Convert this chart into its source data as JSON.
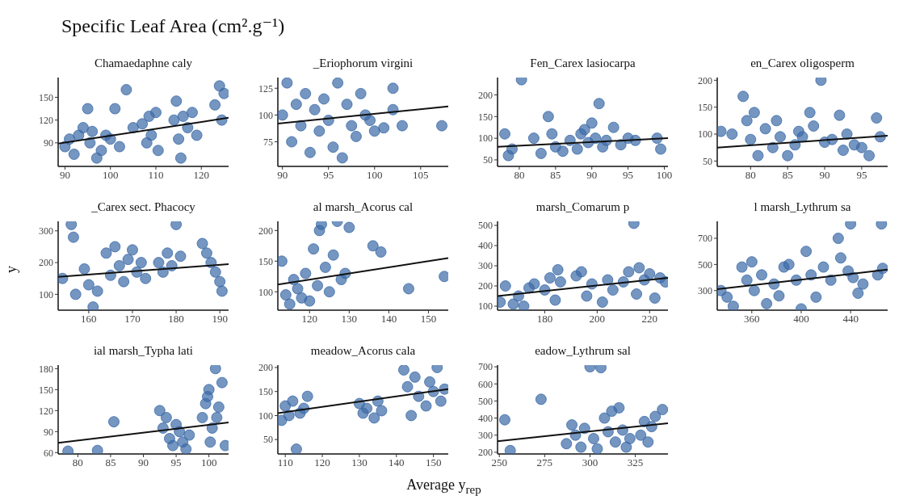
{
  "chart_data": [
    {
      "type": "other",
      "title": "Specific Leaf Area (cm².g⁻¹)"
    },
    {
      "type": "scatter",
      "title": "Chamaedaphne caly",
      "marker": "circle",
      "xlim": [
        88.5,
        126
      ],
      "xticks": [
        90,
        100,
        110,
        120
      ],
      "ylim": [
        59,
        176
      ],
      "yticks": [
        90,
        120,
        150
      ],
      "series": [
        {
          "type": "scatter",
          "color": "#3b6aa6",
          "x": [
            90,
            91,
            92,
            93,
            94,
            95,
            95.5,
            96,
            97,
            98,
            99,
            100,
            101,
            102,
            103.5,
            105,
            107,
            108,
            108.5,
            109,
            110,
            110.5,
            114,
            114.5,
            115,
            115.5,
            116,
            117,
            118,
            119,
            123,
            124,
            124.5,
            125
          ],
          "values": [
            85,
            95,
            75,
            100,
            110,
            135,
            90,
            105,
            70,
            80,
            100,
            95,
            135,
            85,
            160,
            110,
            115,
            90,
            125,
            100,
            130,
            80,
            120,
            145,
            95,
            70,
            125,
            110,
            130,
            100,
            140,
            165,
            120,
            155
          ]
        },
        {
          "type": "line",
          "color": "#111111",
          "marker": "none",
          "x": [
            88.5,
            126
          ],
          "values": [
            89,
            123
          ]
        }
      ]
    },
    {
      "type": "scatter",
      "title": "_Eriophorum virgini",
      "marker": "circle",
      "xlim": [
        89.5,
        108
      ],
      "xticks": [
        90,
        95,
        100,
        105
      ],
      "ylim": [
        52,
        135
      ],
      "yticks": [
        75,
        100,
        125
      ],
      "series": [
        {
          "type": "scatter",
          "color": "#3b6aa6",
          "x": [
            90,
            90.5,
            91,
            91.5,
            92,
            92.5,
            93,
            93.5,
            94,
            94.5,
            95,
            95.5,
            96,
            96.5,
            97,
            97.5,
            98,
            98.5,
            99,
            99.5,
            100,
            101,
            102,
            102,
            103,
            107.3
          ],
          "values": [
            100,
            130,
            75,
            110,
            90,
            120,
            65,
            105,
            85,
            115,
            95,
            70,
            130,
            60,
            110,
            90,
            80,
            120,
            100,
            95,
            85,
            88,
            125,
            105,
            90,
            90
          ]
        },
        {
          "type": "line",
          "color": "#111111",
          "marker": "none",
          "x": [
            89.5,
            108
          ],
          "values": [
            92,
            108
          ]
        }
      ]
    },
    {
      "type": "scatter",
      "title": "Fen_Carex lasiocarpa",
      "marker": "circle",
      "xlim": [
        77,
        100.5
      ],
      "xticks": [
        80,
        85,
        90,
        95,
        100
      ],
      "ylim": [
        35,
        240
      ],
      "yticks": [
        50,
        100,
        150,
        200
      ],
      "series": [
        {
          "type": "scatter",
          "color": "#3b6aa6",
          "x": [
            78,
            78.5,
            79,
            80.3,
            82,
            83,
            84,
            84.5,
            85,
            86,
            87,
            88,
            88.5,
            89,
            89.5,
            90,
            90.5,
            91,
            91.5,
            92,
            93,
            94,
            95,
            96,
            99,
            99.5
          ],
          "values": [
            110,
            60,
            75,
            235,
            100,
            65,
            150,
            110,
            80,
            70,
            95,
            75,
            110,
            120,
            90,
            135,
            100,
            180,
            80,
            95,
            125,
            85,
            100,
            95,
            100,
            75
          ]
        },
        {
          "type": "line",
          "color": "#111111",
          "marker": "none",
          "x": [
            77,
            100.5
          ],
          "values": [
            80,
            100
          ]
        }
      ]
    },
    {
      "type": "scatter",
      "title": "en_Carex oligosperm",
      "marker": "circle",
      "xlim": [
        75.5,
        98.5
      ],
      "xticks": [
        80,
        85,
        90,
        95
      ],
      "ylim": [
        40,
        205
      ],
      "yticks": [
        50,
        100,
        150,
        200
      ],
      "series": [
        {
          "type": "scatter",
          "color": "#3b6aa6",
          "x": [
            76,
            77.5,
            79,
            79.5,
            80,
            80.5,
            81,
            82,
            83,
            83.5,
            84,
            85,
            86,
            86.5,
            87,
            88,
            88.5,
            89.5,
            90,
            91,
            92,
            92.5,
            93,
            94,
            95,
            96,
            97,
            97.5
          ],
          "values": [
            105,
            100,
            170,
            125,
            90,
            140,
            60,
            110,
            75,
            125,
            95,
            60,
            80,
            105,
            95,
            140,
            115,
            200,
            85,
            90,
            135,
            70,
            100,
            80,
            75,
            60,
            130,
            95
          ]
        },
        {
          "type": "line",
          "color": "#111111",
          "marker": "none",
          "x": [
            75.5,
            98.5
          ],
          "values": [
            75,
            97
          ]
        }
      ]
    },
    {
      "type": "scatter",
      "title": "_Carex sect. Phacocy",
      "ylabel": "y",
      "marker": "circle",
      "xlim": [
        153,
        192
      ],
      "xticks": [
        160,
        170,
        180,
        190
      ],
      "ylim": [
        50,
        330
      ],
      "yticks": [
        100,
        200,
        300
      ],
      "series": [
        {
          "type": "scatter",
          "color": "#3b6aa6",
          "x": [
            154,
            156,
            156.5,
            157,
            159,
            160,
            161,
            162,
            164,
            165,
            166,
            167,
            168,
            169,
            170,
            171,
            172,
            173,
            176,
            177,
            178,
            179,
            180,
            181,
            186,
            187,
            188,
            189,
            190,
            190.5
          ],
          "values": [
            150,
            320,
            280,
            100,
            180,
            130,
            60,
            110,
            230,
            160,
            250,
            190,
            140,
            210,
            240,
            170,
            200,
            150,
            200,
            170,
            230,
            190,
            320,
            220,
            260,
            230,
            200,
            170,
            140,
            110
          ]
        },
        {
          "type": "line",
          "color": "#111111",
          "marker": "none",
          "x": [
            153,
            192
          ],
          "values": [
            155,
            195
          ]
        }
      ]
    },
    {
      "type": "scatter",
      "title": "al marsh_Acorus cal",
      "marker": "circle",
      "xlim": [
        112,
        155
      ],
      "xticks": [
        120,
        130,
        140,
        150
      ],
      "ylim": [
        70,
        215
      ],
      "yticks": [
        100,
        150,
        200
      ],
      "series": [
        {
          "type": "scatter",
          "color": "#3b6aa6",
          "x": [
            113,
            114,
            115,
            116,
            117,
            118,
            119,
            120,
            121,
            122,
            122.5,
            123,
            124,
            125,
            126,
            127,
            128,
            129,
            130,
            136,
            138,
            145,
            154
          ],
          "values": [
            150,
            95,
            80,
            120,
            105,
            90,
            130,
            85,
            170,
            110,
            200,
            210,
            140,
            100,
            160,
            215,
            120,
            130,
            205,
            175,
            165,
            105,
            125
          ]
        },
        {
          "type": "line",
          "color": "#111111",
          "marker": "none",
          "x": [
            112,
            155
          ],
          "values": [
            112,
            155
          ]
        }
      ]
    },
    {
      "type": "scatter",
      "title": "marsh_Comarum p",
      "marker": "circle",
      "xlim": [
        162,
        227
      ],
      "xticks": [
        180,
        200,
        220
      ],
      "ylim": [
        80,
        520
      ],
      "yticks": [
        100,
        200,
        300,
        400,
        500
      ],
      "series": [
        {
          "type": "scatter",
          "color": "#3b6aa6",
          "x": [
            163,
            165,
            168,
            170,
            172,
            174,
            176,
            180,
            182,
            184,
            185,
            186,
            192,
            194,
            196,
            198,
            202,
            204,
            206,
            210,
            212,
            214,
            215,
            216,
            218,
            220,
            222,
            224,
            226
          ],
          "values": [
            120,
            200,
            110,
            150,
            100,
            190,
            210,
            180,
            240,
            130,
            280,
            220,
            250,
            270,
            150,
            210,
            120,
            230,
            180,
            220,
            270,
            510,
            160,
            290,
            230,
            260,
            140,
            240,
            220
          ]
        },
        {
          "type": "line",
          "color": "#111111",
          "marker": "none",
          "x": [
            162,
            227
          ],
          "values": [
            150,
            240
          ]
        }
      ]
    },
    {
      "type": "scatter",
      "title": "l marsh_Lythrum sa",
      "marker": "circle",
      "xlim": [
        332,
        470
      ],
      "xticks": [
        360,
        400,
        440
      ],
      "ylim": [
        150,
        830
      ],
      "yticks": [
        300,
        500,
        700
      ],
      "series": [
        {
          "type": "scatter",
          "color": "#3b6aa6",
          "x": [
            335,
            340,
            345,
            352,
            356,
            360,
            362,
            368,
            372,
            378,
            382,
            386,
            390,
            396,
            400,
            404,
            408,
            412,
            418,
            424,
            430,
            432,
            438,
            440,
            442,
            446,
            450,
            462,
            465,
            466
          ],
          "values": [
            300,
            250,
            180,
            480,
            380,
            520,
            300,
            420,
            200,
            350,
            260,
            480,
            500,
            380,
            160,
            600,
            420,
            250,
            480,
            380,
            700,
            550,
            450,
            810,
            400,
            280,
            350,
            420,
            810,
            470
          ]
        },
        {
          "type": "line",
          "color": "#111111",
          "marker": "none",
          "x": [
            332,
            470
          ],
          "values": [
            310,
            460
          ]
        }
      ]
    },
    {
      "type": "scatter",
      "title": "ial marsh_Typha lati",
      "marker": "circle",
      "xlim": [
        77,
        103
      ],
      "xticks": [
        80,
        85,
        90,
        95,
        100
      ],
      "ylim": [
        58,
        185
      ],
      "yticks": [
        60,
        90,
        120,
        150,
        180
      ],
      "series": [
        {
          "type": "scatter",
          "color": "#3b6aa6",
          "x": [
            78.5,
            83,
            85.5,
            92.5,
            93,
            93.5,
            94,
            94.5,
            95,
            95.5,
            96,
            96.5,
            97,
            99,
            99.5,
            100,
            100.5,
            101,
            101.5,
            102,
            102.5,
            100.2,
            99.8,
            101.2
          ],
          "values": [
            62,
            63,
            104,
            120,
            95,
            110,
            80,
            70,
            100,
            90,
            75,
            65,
            85,
            110,
            130,
            150,
            95,
            180,
            125,
            160,
            70,
            75,
            140,
            110
          ]
        },
        {
          "type": "line",
          "color": "#111111",
          "marker": "none",
          "x": [
            77,
            103
          ],
          "values": [
            74,
            103
          ]
        }
      ]
    },
    {
      "type": "scatter",
      "title": "meadow_Acorus cala",
      "xlabel": "Average y$_{rep}$",
      "marker": "circle",
      "xlim": [
        108,
        154
      ],
      "xticks": [
        110,
        120,
        130,
        140,
        150
      ],
      "ylim": [
        20,
        205
      ],
      "yticks": [
        50,
        100,
        150,
        200
      ],
      "series": [
        {
          "type": "scatter",
          "color": "#3b6aa6",
          "x": [
            109,
            110,
            111,
            112,
            113,
            114,
            115,
            116,
            130,
            131,
            132,
            134,
            135,
            136,
            142,
            143,
            144,
            145,
            146,
            148,
            149,
            150,
            151,
            152,
            153
          ],
          "values": [
            90,
            120,
            100,
            130,
            30,
            105,
            115,
            140,
            125,
            105,
            115,
            95,
            130,
            110,
            195,
            160,
            100,
            180,
            140,
            120,
            170,
            150,
            200,
            130,
            155
          ]
        },
        {
          "type": "line",
          "color": "#111111",
          "marker": "none",
          "x": [
            108,
            154
          ],
          "values": [
            105,
            155
          ]
        }
      ]
    },
    {
      "type": "scatter",
      "title": "eadow_Lythrum sal",
      "marker": "circle",
      "xlim": [
        249,
        343
      ],
      "xticks": [
        250,
        275,
        300,
        325
      ],
      "ylim": [
        190,
        710
      ],
      "yticks": [
        200,
        300,
        400,
        500,
        600,
        700
      ],
      "series": [
        {
          "type": "scatter",
          "color": "#3b6aa6",
          "x": [
            253,
            256,
            273,
            287,
            290,
            292,
            295,
            297,
            300,
            302,
            304,
            306,
            308,
            310,
            312,
            314,
            316,
            318,
            320,
            322,
            328,
            330,
            332,
            334,
            336,
            340
          ],
          "values": [
            390,
            210,
            510,
            250,
            360,
            300,
            230,
            340,
            700,
            280,
            220,
            695,
            400,
            320,
            440,
            260,
            460,
            330,
            230,
            280,
            300,
            380,
            260,
            350,
            410,
            450
          ]
        },
        {
          "type": "line",
          "color": "#111111",
          "marker": "none",
          "x": [
            249,
            343
          ],
          "values": [
            265,
            370
          ]
        }
      ]
    }
  ]
}
